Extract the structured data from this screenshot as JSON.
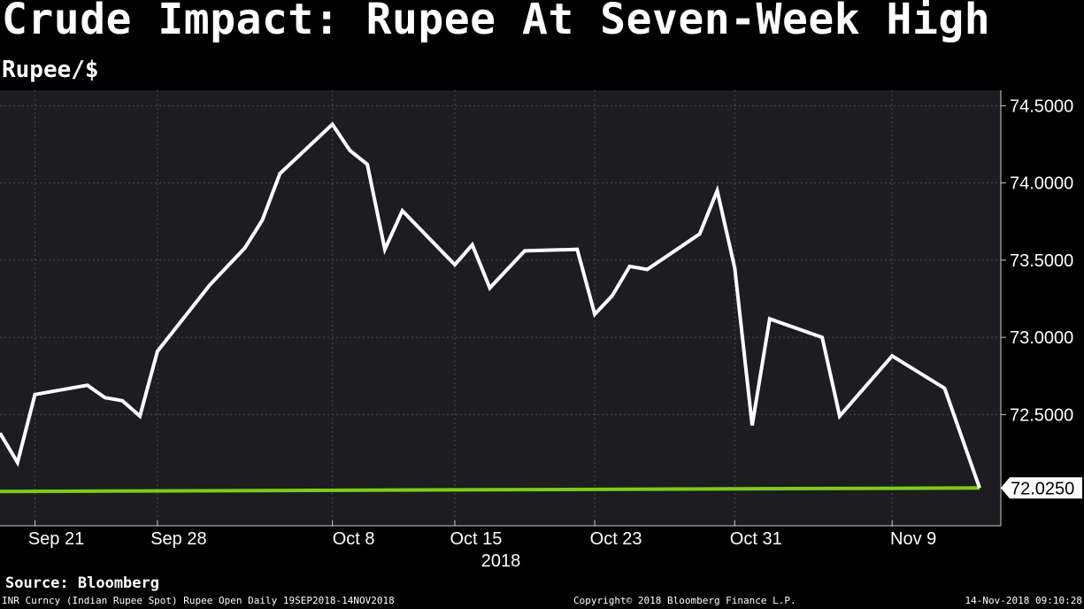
{
  "title": "Crude Impact: Rupee At Seven-Week High",
  "subtitle": "Rupee/$",
  "source": "Source: Bloomberg",
  "footer": {
    "left": "INR Curncy (Indian Rupee Spot) Rupee Open  Daily 19SEP2018-14NOV2018",
    "center": "Copyright© 2018 Bloomberg Finance L.P.",
    "right": "14-Nov-2018 09:10:28"
  },
  "colors": {
    "background": "#000000",
    "plot_background": "#1c1c21",
    "line": "#ffffff",
    "reference_line": "#7ccc19",
    "gridline": "#4a4a55",
    "last_value_box": "#ffffff",
    "last_value_text": "#000000"
  },
  "chart_data": {
    "type": "line",
    "title": "Crude Impact: Rupee At Seven-Week High",
    "ylabel": "Rupee/$",
    "xlabel": "2018",
    "year_label": "2018",
    "x_tick_labels": [
      "Sep 21",
      "Sep 28",
      "Oct 8",
      "Oct 15",
      "Oct 23",
      "Oct 31",
      "Nov 9"
    ],
    "y_tick_labels": [
      "74.5000",
      "74.0000",
      "73.5000",
      "73.0000",
      "72.5000"
    ],
    "y_ticks": [
      74.5,
      74.0,
      73.5,
      73.0,
      72.5
    ],
    "ylim": [
      71.78,
      74.6
    ],
    "grid": true,
    "y_axis_side": "right",
    "series": [
      {
        "values": [
          {
            "x": "2018-09-19",
            "y": 72.38
          },
          {
            "x": "2018-09-20",
            "y": 72.19
          },
          {
            "x": "2018-09-21",
            "y": 72.63
          },
          {
            "x": "2018-09-24",
            "y": 72.69
          },
          {
            "x": "2018-09-25",
            "y": 72.61
          },
          {
            "x": "2018-09-26",
            "y": 72.59
          },
          {
            "x": "2018-09-27",
            "y": 72.49
          },
          {
            "x": "2018-09-28",
            "y": 72.91
          },
          {
            "x": "2018-10-01",
            "y": 73.34
          },
          {
            "x": "2018-10-03",
            "y": 73.58
          },
          {
            "x": "2018-10-04",
            "y": 73.76
          },
          {
            "x": "2018-10-05",
            "y": 74.06
          },
          {
            "x": "2018-10-08",
            "y": 74.38
          },
          {
            "x": "2018-10-09",
            "y": 74.21
          },
          {
            "x": "2018-10-10",
            "y": 74.12
          },
          {
            "x": "2018-10-11",
            "y": 73.57
          },
          {
            "x": "2018-10-12",
            "y": 73.82
          },
          {
            "x": "2018-10-15",
            "y": 73.47
          },
          {
            "x": "2018-10-16",
            "y": 73.6
          },
          {
            "x": "2018-10-17",
            "y": 73.32
          },
          {
            "x": "2018-10-19",
            "y": 73.56
          },
          {
            "x": "2018-10-22",
            "y": 73.57
          },
          {
            "x": "2018-10-23",
            "y": 73.15
          },
          {
            "x": "2018-10-24",
            "y": 73.27
          },
          {
            "x": "2018-10-25",
            "y": 73.46
          },
          {
            "x": "2018-10-26",
            "y": 73.44
          },
          {
            "x": "2018-10-29",
            "y": 73.67
          },
          {
            "x": "2018-10-30",
            "y": 73.95
          },
          {
            "x": "2018-10-31",
            "y": 73.45
          },
          {
            "x": "2018-11-01",
            "y": 72.43
          },
          {
            "x": "2018-11-02",
            "y": 73.12
          },
          {
            "x": "2018-11-05",
            "y": 73.0
          },
          {
            "x": "2018-11-06",
            "y": 72.49
          },
          {
            "x": "2018-11-09",
            "y": 72.88
          },
          {
            "x": "2018-11-12",
            "y": 72.67
          },
          {
            "x": "2018-11-14",
            "y": 72.025
          }
        ]
      }
    ],
    "reference_line": {
      "value": 72.025,
      "label": "72.0250"
    },
    "last_value_label": "72.0250"
  }
}
